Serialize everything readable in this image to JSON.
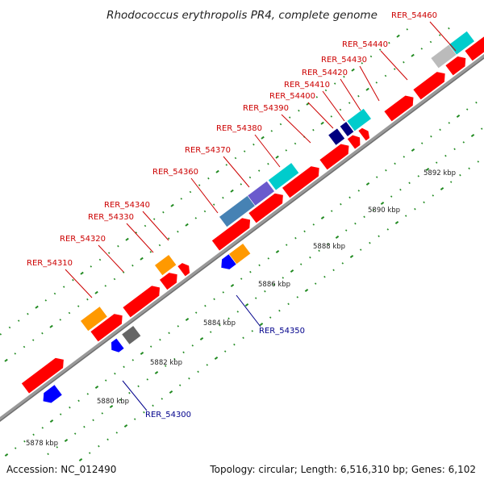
{
  "title": "Rhodococcus erythropolis PR4, complete genome",
  "footer": {
    "accession": "Accession: NC_012490",
    "summary": "Topology: circular; Length: 6,516,310 bp; Genes: 6,102"
  },
  "colors": {
    "forward": "#ff0000",
    "reverse": "#0000ff",
    "orange": "#ff9900",
    "steelblue": "#4682b4",
    "slateblue": "#6a5acd",
    "cyan": "#00cccc",
    "navy": "#000080",
    "gray": "#666666",
    "backbone": "#999999",
    "ticks": "#228b22",
    "label_top": "#cc0000",
    "label_bottom": "#00008b"
  },
  "tick_labels": [
    "5878 kbp",
    "5880 kbp",
    "5882 kbp",
    "5884 kbp",
    "5886 kbp",
    "5888 kbp",
    "5890 kbp",
    "5892 kbp"
  ],
  "top_labels": [
    "RER_54310",
    "RER_54320",
    "RER_54330",
    "RER_54340",
    "RER_54360",
    "RER_54370",
    "RER_54380",
    "RER_54390",
    "RER_54400",
    "RER_54410",
    "RER_54420",
    "RER_54430",
    "RER_54440",
    "RER_54460"
  ],
  "bottom_labels": [
    "RER_54300",
    "RER_54350"
  ]
}
